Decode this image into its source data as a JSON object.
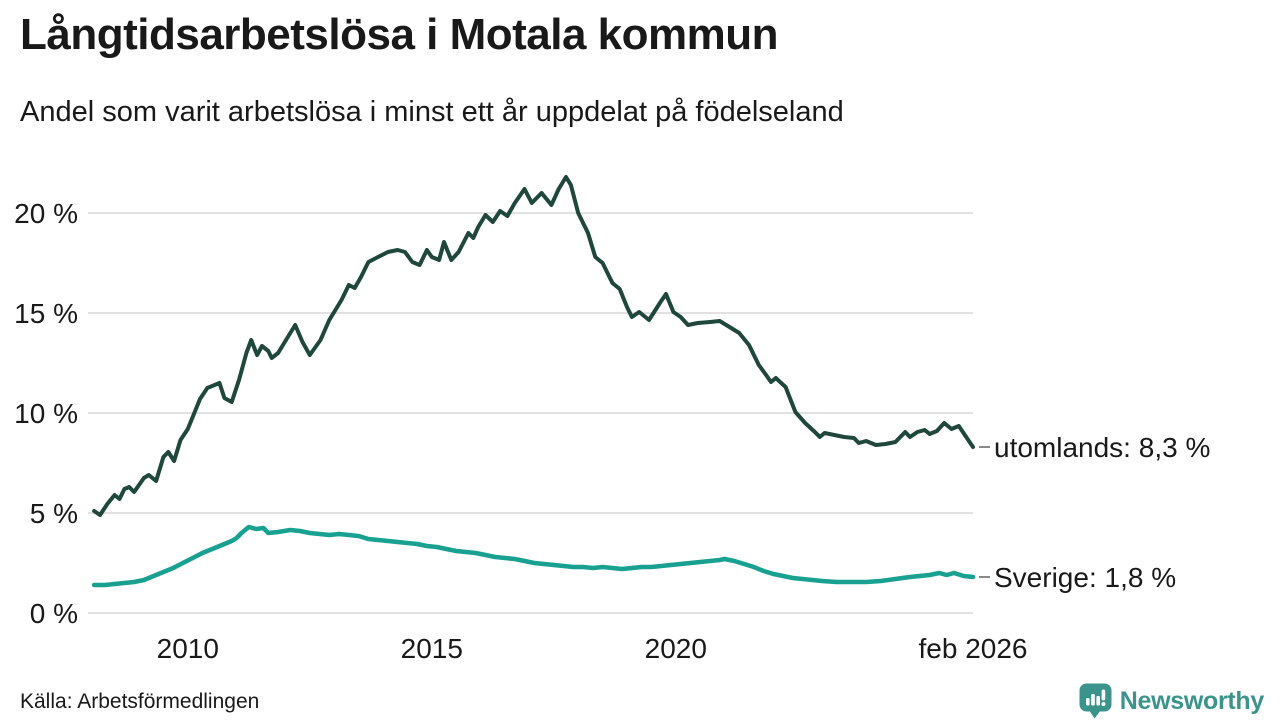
{
  "header": {
    "title": "Långtidsarbetslösa i Motala kommun",
    "subtitle": "Andel som varit arbetslösa i minst ett år uppdelat på födelseland"
  },
  "source": {
    "label": "Källa: Arbetsförmedlingen"
  },
  "branding": {
    "name": "Newsworthy",
    "color": "#3B948C"
  },
  "chart_data": {
    "type": "line",
    "title": "Långtidsarbetslösa i Motala kommun",
    "subtitle": "Andel som varit arbetslösa i minst ett år uppdelat på födelseland",
    "grid": "horizontal",
    "grid_color": "#E2E2E2",
    "text_color": "#191919",
    "tick_dash_color": "#8A8A8A",
    "x_axis": {
      "range": [
        2008.08,
        2026.09
      ],
      "ticks": [
        {
          "year": 2010,
          "label": "2010"
        },
        {
          "year": 2015,
          "label": "2015"
        },
        {
          "year": 2020,
          "label": "2020"
        },
        {
          "year": 2026.09,
          "label": "feb 2026"
        }
      ]
    },
    "y_axis": {
      "range": [
        0,
        22.5
      ],
      "unit": "%",
      "ticks": [
        {
          "value": 0,
          "label": "0 %"
        },
        {
          "value": 5,
          "label": "5 %"
        },
        {
          "value": 10,
          "label": "10 %"
        },
        {
          "value": 15,
          "label": "15 %"
        },
        {
          "value": 20,
          "label": "20 %"
        }
      ]
    },
    "series": [
      {
        "name": "utomlands",
        "label": "utomlands: 8,3 %",
        "last_value": "8,3 %",
        "color": "#1F473C",
        "stroke_width": 4,
        "points": [
          [
            2008.08,
            5.1
          ],
          [
            2008.2,
            4.9
          ],
          [
            2008.35,
            5.45
          ],
          [
            2008.5,
            5.9
          ],
          [
            2008.6,
            5.7
          ],
          [
            2008.7,
            6.2
          ],
          [
            2008.8,
            6.3
          ],
          [
            2008.9,
            6.05
          ],
          [
            2009.0,
            6.4
          ],
          [
            2009.1,
            6.75
          ],
          [
            2009.2,
            6.9
          ],
          [
            2009.35,
            6.6
          ],
          [
            2009.5,
            7.8
          ],
          [
            2009.6,
            8.05
          ],
          [
            2009.72,
            7.6
          ],
          [
            2009.85,
            8.65
          ],
          [
            2010.0,
            9.2
          ],
          [
            2010.1,
            9.8
          ],
          [
            2010.25,
            10.7
          ],
          [
            2010.4,
            11.25
          ],
          [
            2010.55,
            11.4
          ],
          [
            2010.65,
            11.5
          ],
          [
            2010.75,
            10.75
          ],
          [
            2010.9,
            10.55
          ],
          [
            2011.05,
            11.65
          ],
          [
            2011.2,
            13.0
          ],
          [
            2011.3,
            13.65
          ],
          [
            2011.42,
            12.9
          ],
          [
            2011.52,
            13.35
          ],
          [
            2011.65,
            13.1
          ],
          [
            2011.72,
            12.75
          ],
          [
            2011.85,
            13.0
          ],
          [
            2012.0,
            13.6
          ],
          [
            2012.2,
            14.4
          ],
          [
            2012.35,
            13.55
          ],
          [
            2012.5,
            12.9
          ],
          [
            2012.72,
            13.65
          ],
          [
            2012.9,
            14.65
          ],
          [
            2013.15,
            15.65
          ],
          [
            2013.3,
            16.4
          ],
          [
            2013.42,
            16.25
          ],
          [
            2013.55,
            16.8
          ],
          [
            2013.7,
            17.55
          ],
          [
            2013.9,
            17.8
          ],
          [
            2014.1,
            18.05
          ],
          [
            2014.3,
            18.15
          ],
          [
            2014.45,
            18.05
          ],
          [
            2014.6,
            17.55
          ],
          [
            2014.75,
            17.4
          ],
          [
            2014.9,
            18.15
          ],
          [
            2015.0,
            17.8
          ],
          [
            2015.15,
            17.65
          ],
          [
            2015.25,
            18.55
          ],
          [
            2015.4,
            17.65
          ],
          [
            2015.55,
            18.05
          ],
          [
            2015.75,
            19.0
          ],
          [
            2015.85,
            18.75
          ],
          [
            2015.95,
            19.3
          ],
          [
            2016.1,
            19.9
          ],
          [
            2016.25,
            19.55
          ],
          [
            2016.4,
            20.1
          ],
          [
            2016.55,
            19.85
          ],
          [
            2016.7,
            20.5
          ],
          [
            2016.9,
            21.2
          ],
          [
            2017.05,
            20.5
          ],
          [
            2017.25,
            21.0
          ],
          [
            2017.45,
            20.4
          ],
          [
            2017.6,
            21.2
          ],
          [
            2017.75,
            21.8
          ],
          [
            2017.85,
            21.4
          ],
          [
            2018.0,
            20.0
          ],
          [
            2018.2,
            19.0
          ],
          [
            2018.35,
            17.8
          ],
          [
            2018.5,
            17.5
          ],
          [
            2018.7,
            16.5
          ],
          [
            2018.85,
            16.2
          ],
          [
            2019.0,
            15.3
          ],
          [
            2019.1,
            14.8
          ],
          [
            2019.25,
            15.05
          ],
          [
            2019.45,
            14.65
          ],
          [
            2019.7,
            15.6
          ],
          [
            2019.8,
            15.95
          ],
          [
            2019.95,
            15.05
          ],
          [
            2020.1,
            14.8
          ],
          [
            2020.25,
            14.4
          ],
          [
            2020.45,
            14.5
          ],
          [
            2020.7,
            14.55
          ],
          [
            2020.9,
            14.6
          ],
          [
            2021.1,
            14.3
          ],
          [
            2021.3,
            14.0
          ],
          [
            2021.5,
            13.4
          ],
          [
            2021.7,
            12.4
          ],
          [
            2021.85,
            11.9
          ],
          [
            2021.95,
            11.55
          ],
          [
            2022.05,
            11.75
          ],
          [
            2022.25,
            11.3
          ],
          [
            2022.45,
            10.05
          ],
          [
            2022.65,
            9.5
          ],
          [
            2022.85,
            9.05
          ],
          [
            2022.95,
            8.8
          ],
          [
            2023.05,
            9.0
          ],
          [
            2023.25,
            8.9
          ],
          [
            2023.45,
            8.8
          ],
          [
            2023.65,
            8.75
          ],
          [
            2023.75,
            8.5
          ],
          [
            2023.9,
            8.6
          ],
          [
            2024.1,
            8.4
          ],
          [
            2024.3,
            8.45
          ],
          [
            2024.5,
            8.55
          ],
          [
            2024.7,
            9.05
          ],
          [
            2024.8,
            8.8
          ],
          [
            2024.95,
            9.05
          ],
          [
            2025.1,
            9.15
          ],
          [
            2025.2,
            8.95
          ],
          [
            2025.35,
            9.1
          ],
          [
            2025.5,
            9.5
          ],
          [
            2025.65,
            9.2
          ],
          [
            2025.8,
            9.35
          ],
          [
            2025.95,
            8.8
          ],
          [
            2026.09,
            8.3
          ]
        ]
      },
      {
        "name": "Sverige",
        "label": "Sverige: 1,8 %",
        "last_value": "1,8 %",
        "color": "#18A091",
        "stroke_width": 4.5,
        "points": [
          [
            2008.08,
            1.4
          ],
          [
            2008.3,
            1.4
          ],
          [
            2008.5,
            1.45
          ],
          [
            2008.7,
            1.5
          ],
          [
            2008.9,
            1.55
          ],
          [
            2009.1,
            1.65
          ],
          [
            2009.3,
            1.85
          ],
          [
            2009.5,
            2.05
          ],
          [
            2009.7,
            2.25
          ],
          [
            2009.9,
            2.5
          ],
          [
            2010.1,
            2.75
          ],
          [
            2010.3,
            3.0
          ],
          [
            2010.5,
            3.2
          ],
          [
            2010.7,
            3.4
          ],
          [
            2010.9,
            3.6
          ],
          [
            2011.0,
            3.75
          ],
          [
            2011.1,
            4.0
          ],
          [
            2011.25,
            4.3
          ],
          [
            2011.4,
            4.2
          ],
          [
            2011.55,
            4.25
          ],
          [
            2011.65,
            4.0
          ],
          [
            2011.85,
            4.05
          ],
          [
            2012.1,
            4.15
          ],
          [
            2012.3,
            4.1
          ],
          [
            2012.5,
            4.0
          ],
          [
            2012.7,
            3.95
          ],
          [
            2012.9,
            3.9
          ],
          [
            2013.1,
            3.95
          ],
          [
            2013.3,
            3.9
          ],
          [
            2013.5,
            3.85
          ],
          [
            2013.7,
            3.7
          ],
          [
            2013.9,
            3.65
          ],
          [
            2014.1,
            3.6
          ],
          [
            2014.3,
            3.55
          ],
          [
            2014.5,
            3.5
          ],
          [
            2014.7,
            3.45
          ],
          [
            2014.9,
            3.35
          ],
          [
            2015.1,
            3.3
          ],
          [
            2015.3,
            3.2
          ],
          [
            2015.5,
            3.1
          ],
          [
            2015.7,
            3.05
          ],
          [
            2015.9,
            3.0
          ],
          [
            2016.1,
            2.9
          ],
          [
            2016.3,
            2.8
          ],
          [
            2016.5,
            2.75
          ],
          [
            2016.7,
            2.7
          ],
          [
            2016.9,
            2.6
          ],
          [
            2017.1,
            2.5
          ],
          [
            2017.3,
            2.45
          ],
          [
            2017.5,
            2.4
          ],
          [
            2017.7,
            2.35
          ],
          [
            2017.9,
            2.3
          ],
          [
            2018.1,
            2.3
          ],
          [
            2018.3,
            2.25
          ],
          [
            2018.5,
            2.3
          ],
          [
            2018.7,
            2.25
          ],
          [
            2018.9,
            2.2
          ],
          [
            2019.1,
            2.25
          ],
          [
            2019.3,
            2.3
          ],
          [
            2019.5,
            2.3
          ],
          [
            2019.7,
            2.35
          ],
          [
            2019.9,
            2.4
          ],
          [
            2020.1,
            2.45
          ],
          [
            2020.3,
            2.5
          ],
          [
            2020.5,
            2.55
          ],
          [
            2020.7,
            2.6
          ],
          [
            2020.9,
            2.65
          ],
          [
            2021.0,
            2.7
          ],
          [
            2021.2,
            2.6
          ],
          [
            2021.4,
            2.45
          ],
          [
            2021.6,
            2.3
          ],
          [
            2021.8,
            2.1
          ],
          [
            2022.0,
            1.95
          ],
          [
            2022.2,
            1.85
          ],
          [
            2022.4,
            1.75
          ],
          [
            2022.6,
            1.7
          ],
          [
            2022.8,
            1.65
          ],
          [
            2023.0,
            1.6
          ],
          [
            2023.3,
            1.55
          ],
          [
            2023.6,
            1.55
          ],
          [
            2023.9,
            1.55
          ],
          [
            2024.2,
            1.6
          ],
          [
            2024.5,
            1.7
          ],
          [
            2024.8,
            1.8
          ],
          [
            2025.0,
            1.85
          ],
          [
            2025.2,
            1.9
          ],
          [
            2025.4,
            2.0
          ],
          [
            2025.55,
            1.9
          ],
          [
            2025.7,
            2.0
          ],
          [
            2025.9,
            1.85
          ],
          [
            2026.09,
            1.8
          ]
        ]
      }
    ]
  }
}
